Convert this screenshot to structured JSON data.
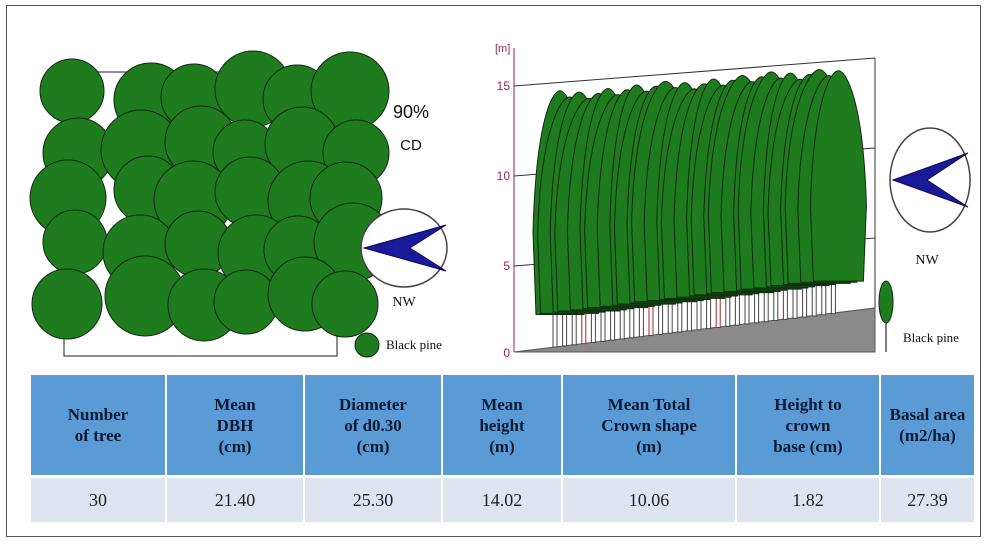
{
  "plan_view": {
    "coverage": "90%",
    "coverage_label": "CD",
    "compass_label": "NW",
    "legend_label": "Black pine"
  },
  "profile_view": {
    "unit_label": "[m]",
    "y_ticks": [
      "0",
      "5",
      "10",
      "15"
    ],
    "compass_label": "NW",
    "legend_label": "Black pine"
  },
  "colors": {
    "crown": "#1e7b1e",
    "crown_stroke": "#0f2a0f",
    "compass_arrow": "#1a1a9a",
    "axis": "#9b1c6b",
    "header_bg": "#5b9bd5",
    "row_bg": "#dde5f1"
  },
  "table": {
    "headers": [
      [
        "Number",
        "of tree"
      ],
      [
        "Mean",
        "DBH",
        "(cm)"
      ],
      [
        "Diameter",
        "of d0.30",
        "(cm)"
      ],
      [
        "Mean",
        "height",
        "(m)"
      ],
      [
        "Mean Total",
        "Crown shape",
        "(m)"
      ],
      [
        "Height to",
        "crown",
        "base (cm)"
      ],
      [
        "Basal area",
        "(m2/ha)"
      ]
    ],
    "values": [
      "30",
      "21.40",
      "25.30",
      "14.02",
      "10.06",
      "1.82",
      "27.39"
    ]
  }
}
